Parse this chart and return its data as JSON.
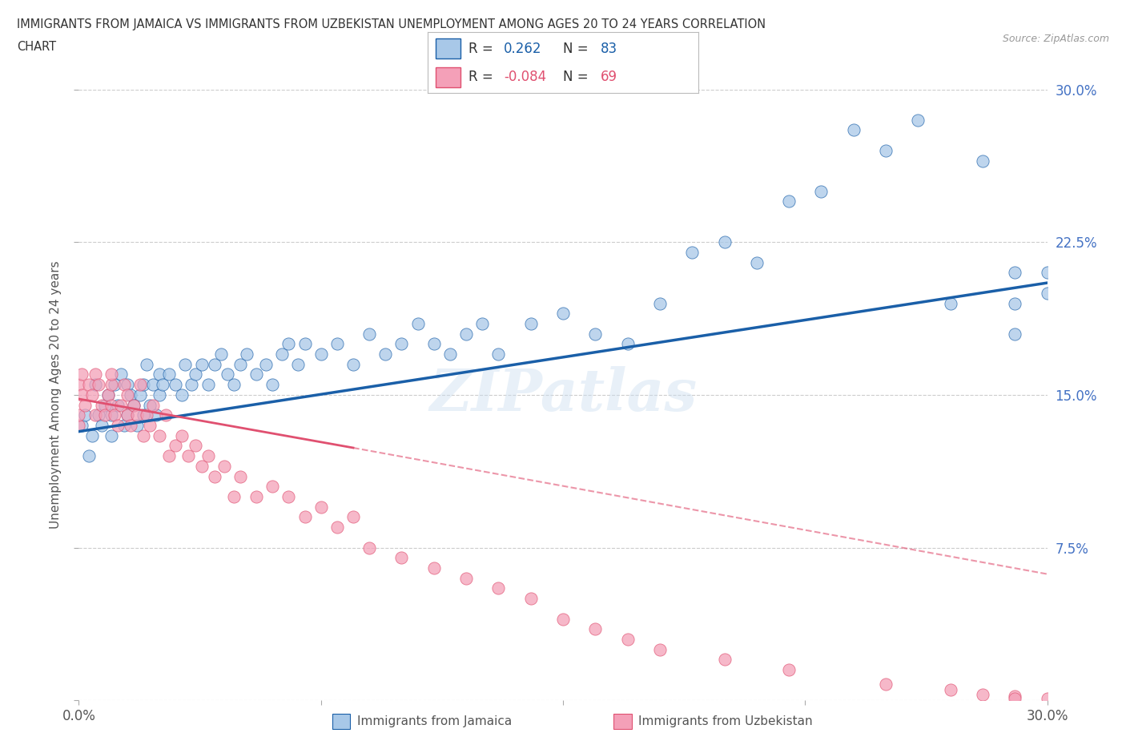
{
  "title_line1": "IMMIGRANTS FROM JAMAICA VS IMMIGRANTS FROM UZBEKISTAN UNEMPLOYMENT AMONG AGES 20 TO 24 YEARS CORRELATION",
  "title_line2": "CHART",
  "source_text": "Source: ZipAtlas.com",
  "ylabel": "Unemployment Among Ages 20 to 24 years",
  "xlim": [
    0.0,
    0.3
  ],
  "ylim": [
    0.0,
    0.3
  ],
  "r_jamaica": 0.262,
  "n_jamaica": 83,
  "r_uzbekistan": -0.084,
  "n_uzbekistan": 69,
  "color_jamaica": "#a8c8e8",
  "color_uzbekistan": "#f4a0b8",
  "line_color_jamaica": "#1a5fa8",
  "line_color_uzbekistan": "#e05070",
  "legend_label_jamaica": "Immigrants from Jamaica",
  "legend_label_uzbekistan": "Immigrants from Uzbekistan",
  "watermark": "ZIPatlas",
  "background_color": "#ffffff",
  "grid_color": "#cccccc",
  "title_color": "#333333",
  "tick_color_right": "#4472c4",
  "jamaica_x": [
    0.001,
    0.002,
    0.003,
    0.004,
    0.005,
    0.006,
    0.007,
    0.008,
    0.009,
    0.01,
    0.01,
    0.011,
    0.012,
    0.013,
    0.014,
    0.015,
    0.015,
    0.016,
    0.017,
    0.018,
    0.019,
    0.02,
    0.02,
    0.021,
    0.022,
    0.023,
    0.024,
    0.025,
    0.025,
    0.026,
    0.028,
    0.03,
    0.032,
    0.033,
    0.035,
    0.036,
    0.038,
    0.04,
    0.042,
    0.044,
    0.046,
    0.048,
    0.05,
    0.052,
    0.055,
    0.058,
    0.06,
    0.063,
    0.065,
    0.068,
    0.07,
    0.075,
    0.08,
    0.085,
    0.09,
    0.095,
    0.1,
    0.105,
    0.11,
    0.115,
    0.12,
    0.125,
    0.13,
    0.14,
    0.15,
    0.16,
    0.17,
    0.18,
    0.19,
    0.2,
    0.21,
    0.22,
    0.23,
    0.24,
    0.25,
    0.26,
    0.27,
    0.28,
    0.29,
    0.29,
    0.29,
    0.3,
    0.3
  ],
  "jamaica_y": [
    0.135,
    0.14,
    0.12,
    0.13,
    0.155,
    0.14,
    0.135,
    0.145,
    0.15,
    0.13,
    0.14,
    0.155,
    0.145,
    0.16,
    0.135,
    0.14,
    0.155,
    0.15,
    0.145,
    0.135,
    0.15,
    0.14,
    0.155,
    0.165,
    0.145,
    0.155,
    0.14,
    0.15,
    0.16,
    0.155,
    0.16,
    0.155,
    0.15,
    0.165,
    0.155,
    0.16,
    0.165,
    0.155,
    0.165,
    0.17,
    0.16,
    0.155,
    0.165,
    0.17,
    0.16,
    0.165,
    0.155,
    0.17,
    0.175,
    0.165,
    0.175,
    0.17,
    0.175,
    0.165,
    0.18,
    0.17,
    0.175,
    0.185,
    0.175,
    0.17,
    0.18,
    0.185,
    0.17,
    0.185,
    0.19,
    0.18,
    0.175,
    0.195,
    0.22,
    0.225,
    0.215,
    0.245,
    0.25,
    0.28,
    0.27,
    0.285,
    0.195,
    0.265,
    0.21,
    0.18,
    0.195,
    0.21,
    0.2
  ],
  "uzbekistan_x": [
    0.0,
    0.0,
    0.0,
    0.001,
    0.001,
    0.002,
    0.003,
    0.004,
    0.005,
    0.005,
    0.006,
    0.007,
    0.008,
    0.009,
    0.01,
    0.01,
    0.01,
    0.011,
    0.012,
    0.013,
    0.014,
    0.015,
    0.015,
    0.016,
    0.017,
    0.018,
    0.019,
    0.02,
    0.021,
    0.022,
    0.023,
    0.025,
    0.027,
    0.028,
    0.03,
    0.032,
    0.034,
    0.036,
    0.038,
    0.04,
    0.042,
    0.045,
    0.048,
    0.05,
    0.055,
    0.06,
    0.065,
    0.07,
    0.075,
    0.08,
    0.085,
    0.09,
    0.1,
    0.11,
    0.12,
    0.13,
    0.14,
    0.15,
    0.16,
    0.17,
    0.18,
    0.2,
    0.22,
    0.25,
    0.27,
    0.28,
    0.29,
    0.29,
    0.3
  ],
  "uzbekistan_y": [
    0.135,
    0.14,
    0.155,
    0.16,
    0.15,
    0.145,
    0.155,
    0.15,
    0.14,
    0.16,
    0.155,
    0.145,
    0.14,
    0.15,
    0.145,
    0.155,
    0.16,
    0.14,
    0.135,
    0.145,
    0.155,
    0.14,
    0.15,
    0.135,
    0.145,
    0.14,
    0.155,
    0.13,
    0.14,
    0.135,
    0.145,
    0.13,
    0.14,
    0.12,
    0.125,
    0.13,
    0.12,
    0.125,
    0.115,
    0.12,
    0.11,
    0.115,
    0.1,
    0.11,
    0.1,
    0.105,
    0.1,
    0.09,
    0.095,
    0.085,
    0.09,
    0.075,
    0.07,
    0.065,
    0.06,
    0.055,
    0.05,
    0.04,
    0.035,
    0.03,
    0.025,
    0.02,
    0.015,
    0.008,
    0.005,
    0.003,
    0.002,
    0.001,
    0.001
  ],
  "jline_x0": 0.0,
  "jline_x1": 0.3,
  "jline_y0": 0.132,
  "jline_y1": 0.205,
  "uline_solid_x0": 0.0,
  "uline_solid_x1": 0.085,
  "uline_solid_y0": 0.148,
  "uline_solid_y1": 0.124,
  "uline_dash_x0": 0.085,
  "uline_dash_x1": 0.3,
  "uline_dash_y0": 0.124,
  "uline_dash_y1": 0.062
}
